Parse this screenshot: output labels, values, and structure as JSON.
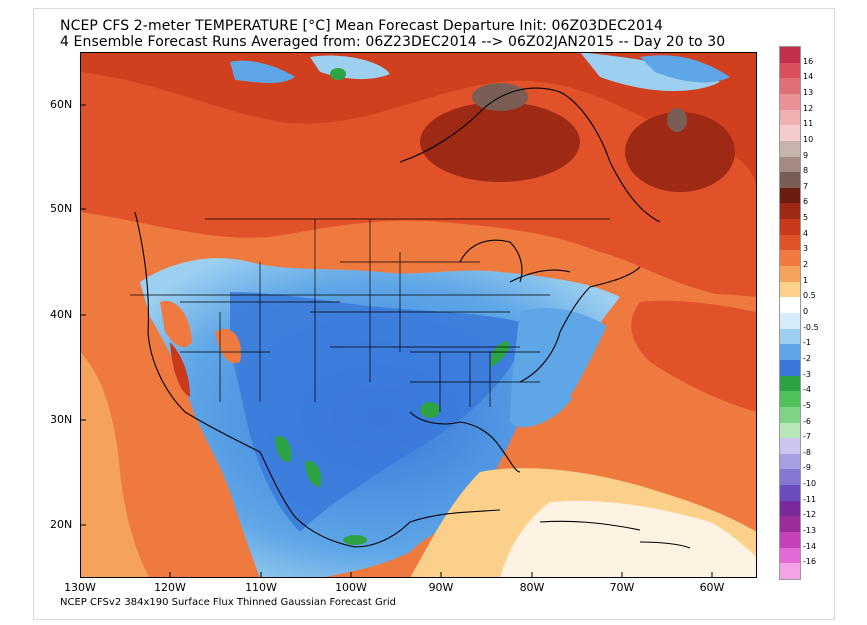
{
  "title": {
    "line1": "NCEP CFS 2-meter TEMPERATURE [°C] Mean Forecast Departure Init: 06Z03DEC2014",
    "line2": "4 Ensemble Forecast Runs Averaged from: 06Z23DEC2014 --> 06Z02JAN2015 -- Day 20 to 30"
  },
  "footer": "NCEP CFSv2 384x190 Surface Flux Thinned Gaussian Forecast Grid",
  "axes": {
    "lat_labels": [
      "60N",
      "50N",
      "40N",
      "30N",
      "20N"
    ],
    "lon_labels": [
      "130W",
      "120W",
      "110W",
      "100W",
      "90W",
      "80W",
      "70W",
      "60W"
    ]
  },
  "colorbar": {
    "labels": [
      "16",
      "14",
      "13",
      "12",
      "11",
      "10",
      "9",
      "8",
      "7",
      "6",
      "5",
      "4",
      "3",
      "2",
      "1",
      "0.5",
      "0",
      "-0.5",
      "-1",
      "-2",
      "-3",
      "-4",
      "-5",
      "-6",
      "-7",
      "-8",
      "-9",
      "-10",
      "-11",
      "-12",
      "-13",
      "-14",
      "-16"
    ],
    "colors": [
      "#c0304a",
      "#d94f5e",
      "#e07078",
      "#e89196",
      "#f0b0b2",
      "#f4cccc",
      "#c9b3ad",
      "#a38a83",
      "#7a5e56",
      "#6b1d10",
      "#9e2a16",
      "#c9391b",
      "#e1522a",
      "#ef7a3f",
      "#f5a25c",
      "#fad08b",
      "#ffffff",
      "#d6ecfa",
      "#9ccff0",
      "#5ea6e6",
      "#3a79db",
      "#2da344",
      "#4fc05a",
      "#7ed385",
      "#b8e6b9",
      "#c9c5ee",
      "#a69fe2",
      "#8677d2",
      "#6c4bbf",
      "#7a2a9a",
      "#9a2d9a",
      "#c540ba",
      "#e36ad6",
      "#f3a3e6"
    ]
  }
}
